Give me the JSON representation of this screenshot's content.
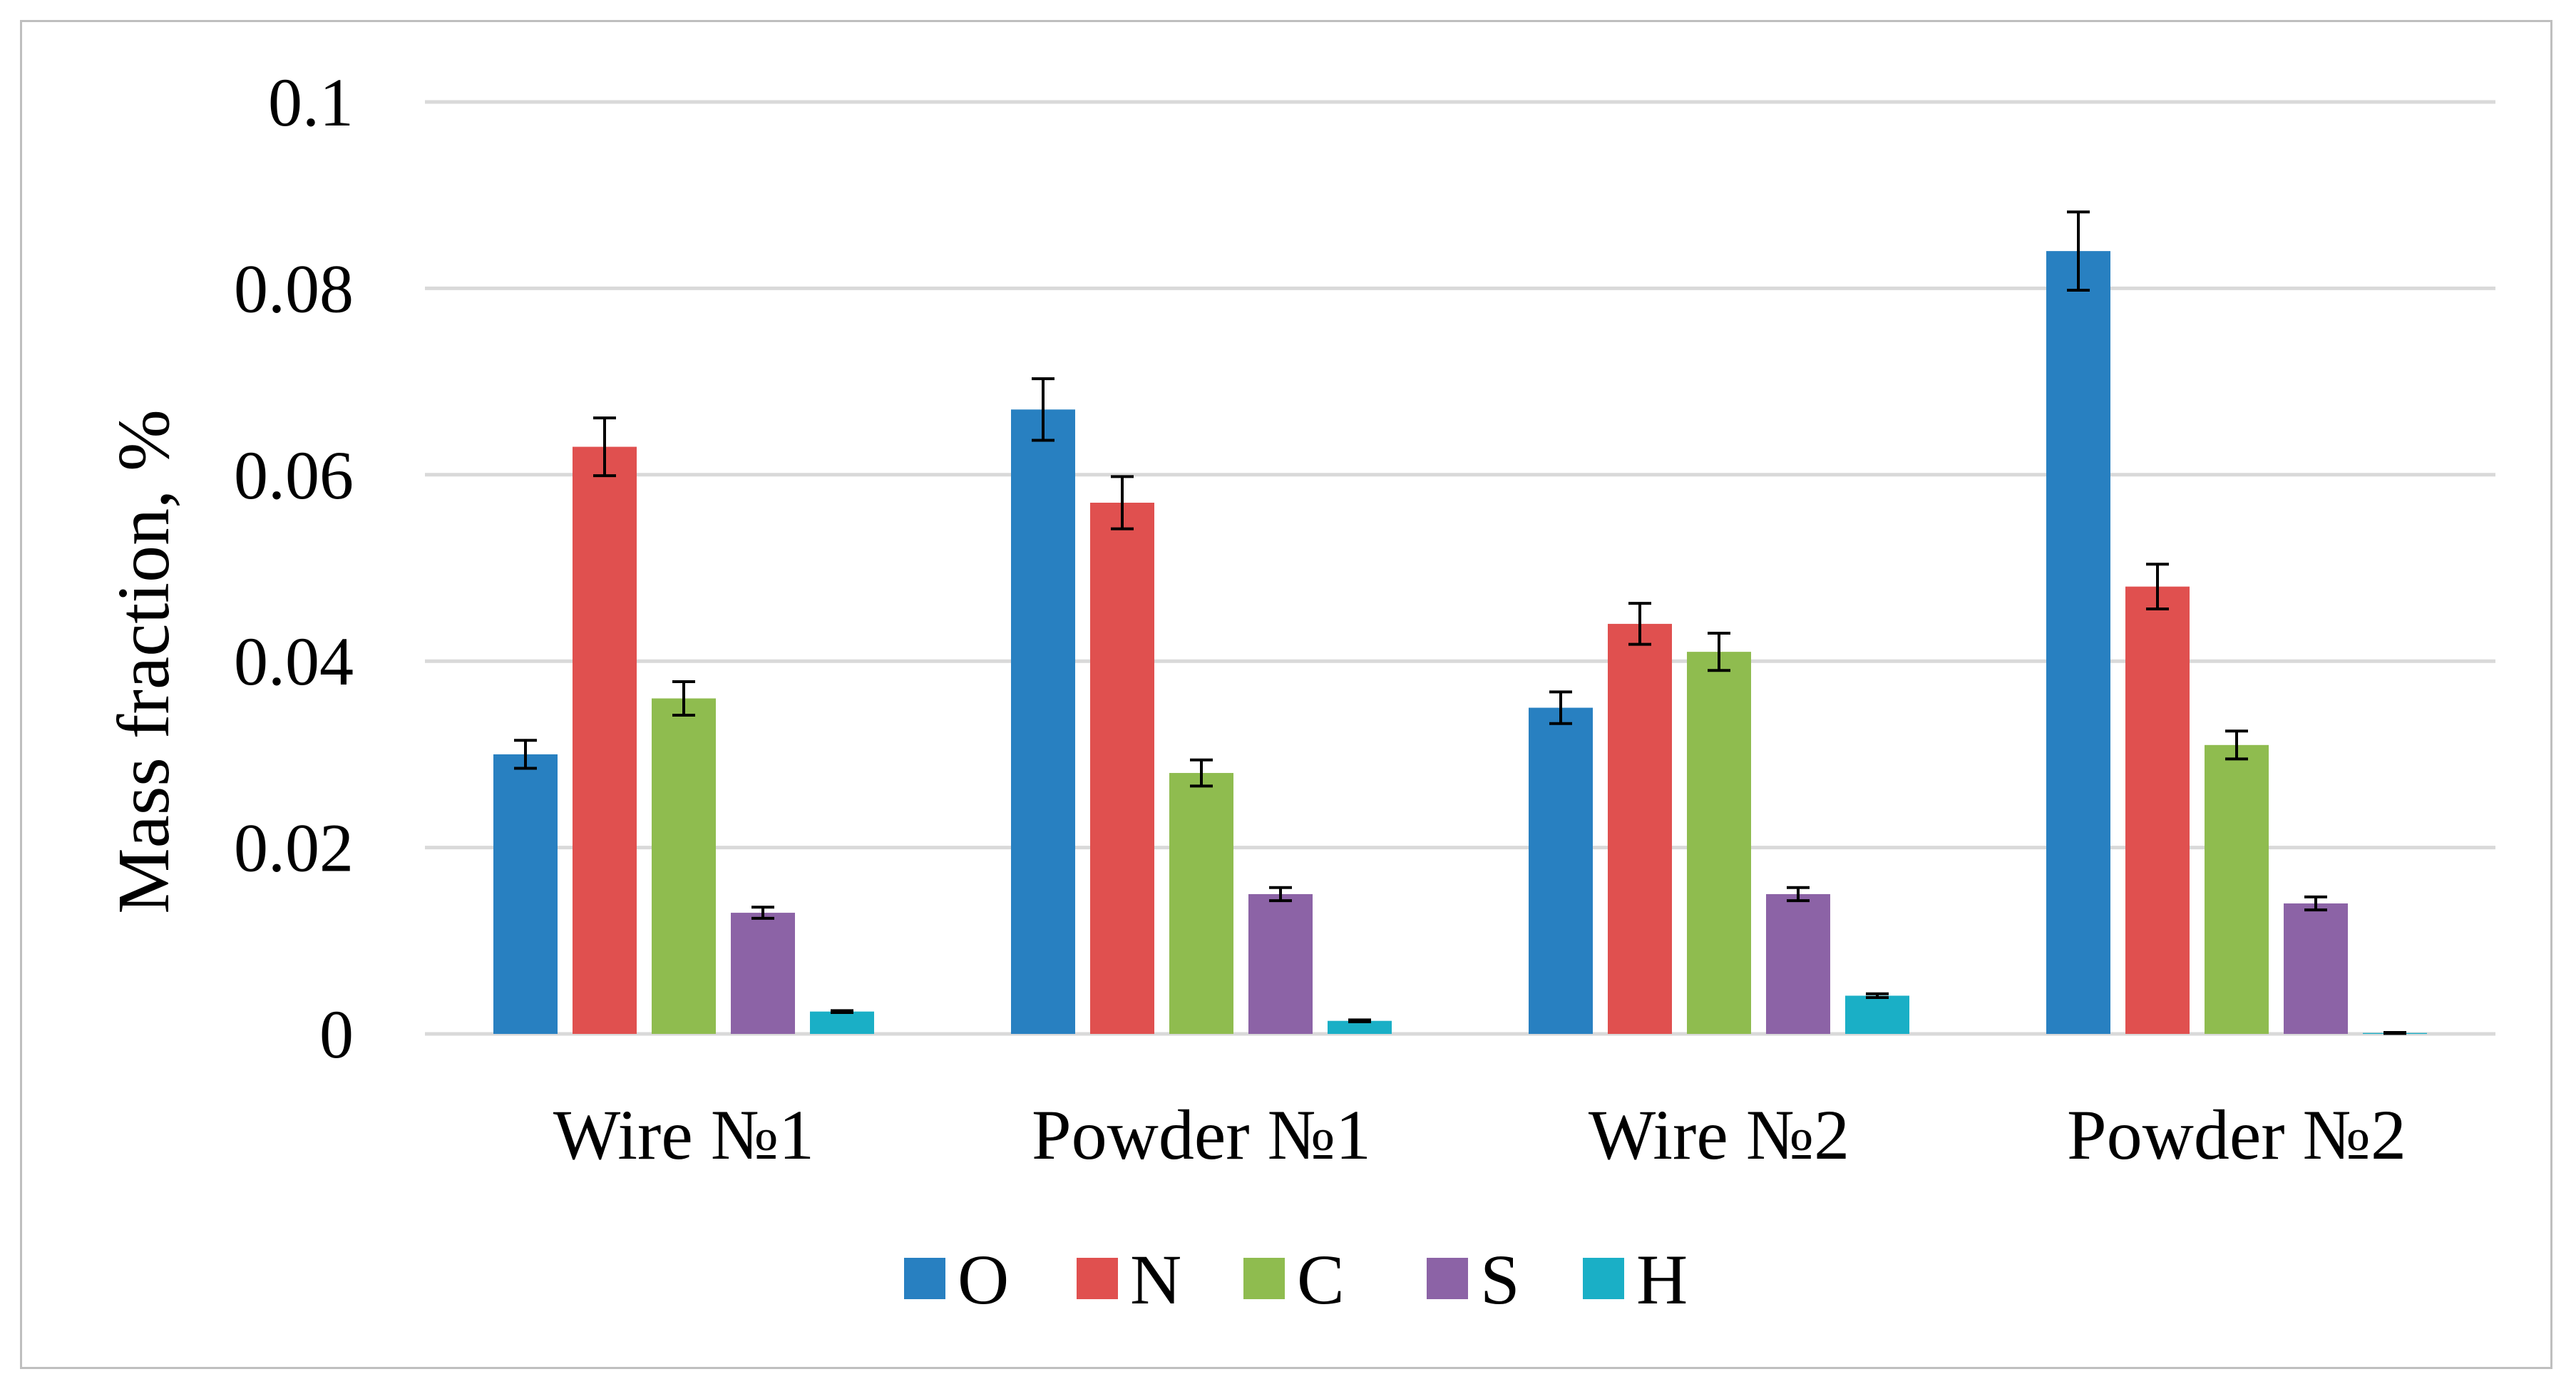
{
  "chart_data": {
    "type": "bar",
    "title": "",
    "xlabel": "",
    "ylabel": "Mass fraction, %",
    "ylim": [
      0,
      0.1
    ],
    "yticks": [
      0,
      0.02,
      0.04,
      0.06,
      0.08,
      0.1
    ],
    "ytick_labels": [
      "0",
      "0.02",
      "0.04",
      "0.06",
      "0.08",
      "0.1"
    ],
    "grid": true,
    "legend_position": "bottom",
    "categories": [
      "Wire №1",
      "Powder №1",
      "Wire №2",
      "Powder №2"
    ],
    "series": [
      {
        "name": "O",
        "color": "#2880C1",
        "values": [
          0.03,
          0.067,
          0.035,
          0.084
        ],
        "errors": [
          0.0015,
          0.0033,
          0.0017,
          0.0042
        ]
      },
      {
        "name": "N",
        "color": "#E0504F",
        "values": [
          0.063,
          0.057,
          0.044,
          0.048
        ],
        "errors": [
          0.0031,
          0.0028,
          0.0022,
          0.0024
        ]
      },
      {
        "name": "C",
        "color": "#8FBC4F",
        "values": [
          0.036,
          0.028,
          0.041,
          0.031
        ],
        "errors": [
          0.0018,
          0.0014,
          0.002,
          0.0015
        ]
      },
      {
        "name": "S",
        "color": "#8C63A6",
        "values": [
          0.013,
          0.015,
          0.015,
          0.014
        ],
        "errors": [
          0.0006,
          0.0007,
          0.0007,
          0.0007
        ]
      },
      {
        "name": "H",
        "color": "#1AAFC6",
        "values": [
          0.0024,
          0.0014,
          0.0041,
          0.0001
        ],
        "errors": [
          0.0001,
          0.0001,
          0.0002,
          5e-05
        ]
      }
    ]
  }
}
